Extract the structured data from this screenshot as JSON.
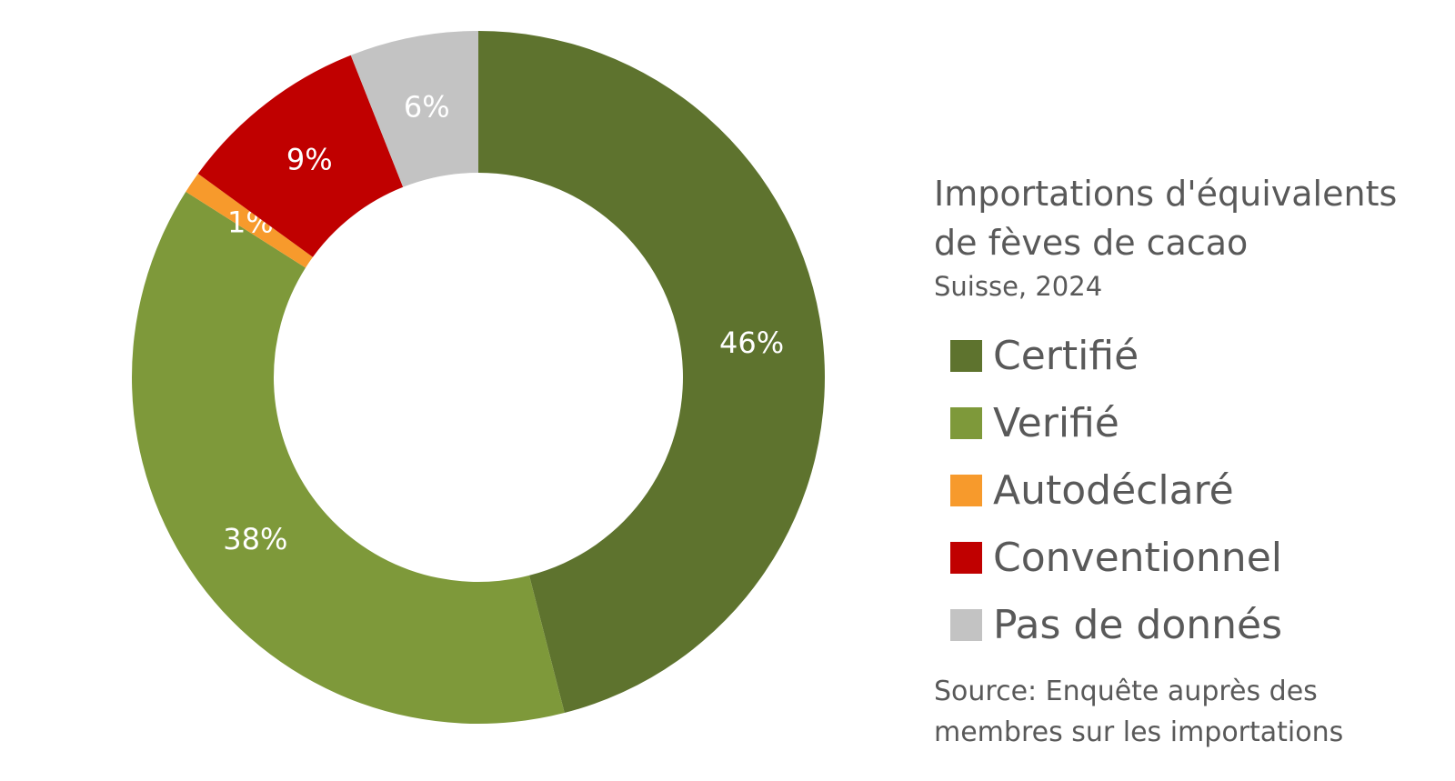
{
  "chart_data": {
    "type": "pie",
    "variant": "donut",
    "title": "Importations d'équivalents de fèves de cacao",
    "subtitle": "Suisse, 2024",
    "source": "Source: Enquête auprès des membres sur les importations",
    "legend_position": "right",
    "slices": [
      {
        "label": "Certifié",
        "value": 46,
        "data_label": "46%",
        "color": "#5E732E",
        "label_color": "#ffffff"
      },
      {
        "label": "Verifié",
        "value": 38,
        "data_label": "38%",
        "color": "#7E993A",
        "label_color": "#ffffff"
      },
      {
        "label": "Autodéclaré",
        "value": 1,
        "data_label": "1%",
        "color": "#F79A2C",
        "label_color": "#ffffff"
      },
      {
        "label": "Conventionnel",
        "value": 9,
        "data_label": "9%",
        "color": "#C00000",
        "label_color": "#ffffff"
      },
      {
        "label": "Pas de donnés",
        "value": 6,
        "data_label": "6%",
        "color": "#C3C3C3",
        "label_color": "#ffffff"
      }
    ]
  }
}
